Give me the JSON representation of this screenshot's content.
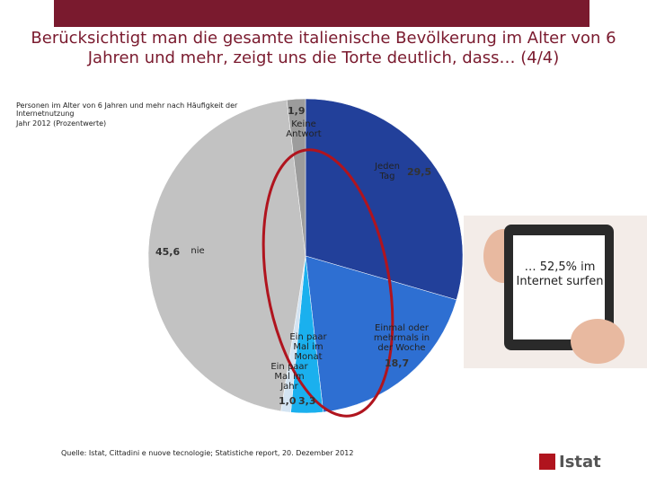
{
  "title": "Berücksichtigt man die gesamte italienische Bevölkerung im Alter von 6 Jahren und mehr, zeigt uns die Torte deutlich, dass… (4/4)",
  "chart_data": {
    "type": "pie",
    "subtitle": "Personen im Alter von 6 Jahren und mehr nach Häufigkeit der Internetnutzung",
    "subtitle2": "Jahr 2012 (Prozentwerte)",
    "categories": [
      "Jeden Tag",
      "Einmal oder mehrmals in der Woche",
      "Ein paar Mal im Monat",
      "Ein paar Mal im Jahr",
      "nie",
      "Keine Antwort"
    ],
    "values": [
      29.5,
      18.7,
      3.3,
      1.0,
      45.6,
      1.9
    ],
    "value_labels": [
      "29,5",
      "18,7",
      "3,3",
      "1,0",
      "45,6",
      "1,9"
    ],
    "colors": [
      "#22409a",
      "#2e6fd2",
      "#1ab0ee",
      "#d4e4f2",
      "#c2c2c2",
      "#9c9c9c"
    ]
  },
  "annotation": "… 52,5% im Internet surfen",
  "source": "Quelle: Istat, Cittadini e nuove tecnologie; Statistiche report, 20. Dezember 2012",
  "logo": "Istat"
}
